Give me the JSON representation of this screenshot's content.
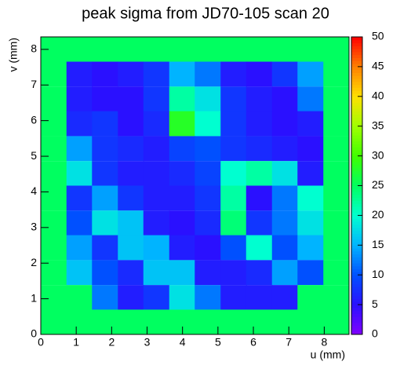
{
  "chart_data": {
    "type": "heatmap",
    "title": "peak sigma from JD70-105 scan 20",
    "x_label": "u (mm)",
    "y_label": "v (mm)",
    "x": [
      0.36,
      1.09,
      1.81,
      2.54,
      3.26,
      3.99,
      4.71,
      5.44,
      6.16,
      6.89,
      7.61,
      8.34
    ],
    "y": [
      8.0,
      7.31,
      6.61,
      5.92,
      5.22,
      4.52,
      3.83,
      3.13,
      2.44,
      1.74,
      1.04,
      0.35
    ],
    "z": [
      [
        25,
        25,
        25,
        25,
        25,
        25,
        25,
        25,
        25,
        25,
        25,
        25
      ],
      [
        25,
        6,
        5,
        6,
        8,
        15,
        12,
        6,
        5,
        8,
        14,
        25
      ],
      [
        25,
        6,
        5,
        5,
        8,
        22,
        18,
        8,
        6,
        5,
        12,
        25
      ],
      [
        25,
        7,
        8,
        5,
        7,
        28,
        20,
        8,
        6,
        5,
        6,
        25
      ],
      [
        25,
        14,
        8,
        7,
        6,
        9,
        10,
        8,
        7,
        6,
        5,
        25
      ],
      [
        25,
        18,
        8,
        6,
        6,
        7,
        9,
        20,
        22,
        18,
        6,
        25
      ],
      [
        25,
        8,
        14,
        8,
        6,
        6,
        8,
        22,
        5,
        12,
        20,
        25
      ],
      [
        25,
        10,
        18,
        16,
        6,
        5,
        7,
        24,
        8,
        12,
        18,
        25
      ],
      [
        25,
        14,
        8,
        16,
        15,
        6,
        5,
        10,
        20,
        10,
        15,
        25
      ],
      [
        25,
        16,
        10,
        7,
        16,
        16,
        6,
        6,
        7,
        14,
        10,
        25
      ],
      [
        25,
        25,
        12,
        6,
        8,
        18,
        12,
        6,
        6,
        6,
        25,
        25
      ],
      [
        25,
        25,
        25,
        25,
        25,
        25,
        25,
        25,
        25,
        25,
        25,
        25
      ]
    ],
    "xlim": [
      0,
      8.7
    ],
    "ylim": [
      0,
      8.35
    ],
    "zlim": [
      0,
      50
    ],
    "xticks": [
      0,
      1,
      2,
      3,
      4,
      5,
      6,
      7,
      8
    ],
    "yticks": [
      0,
      1,
      2,
      3,
      4,
      5,
      6,
      7,
      8
    ],
    "zticks": [
      0,
      5,
      10,
      15,
      20,
      25,
      30,
      35,
      40,
      45,
      50
    ],
    "palette": [
      "#8000ff",
      "#2a10ff",
      "#0050ff",
      "#00b4ff",
      "#00ffd0",
      "#00ff60",
      "#40ff00",
      "#a0ff00",
      "#ffe000",
      "#ff8000",
      "#ff0000"
    ]
  }
}
